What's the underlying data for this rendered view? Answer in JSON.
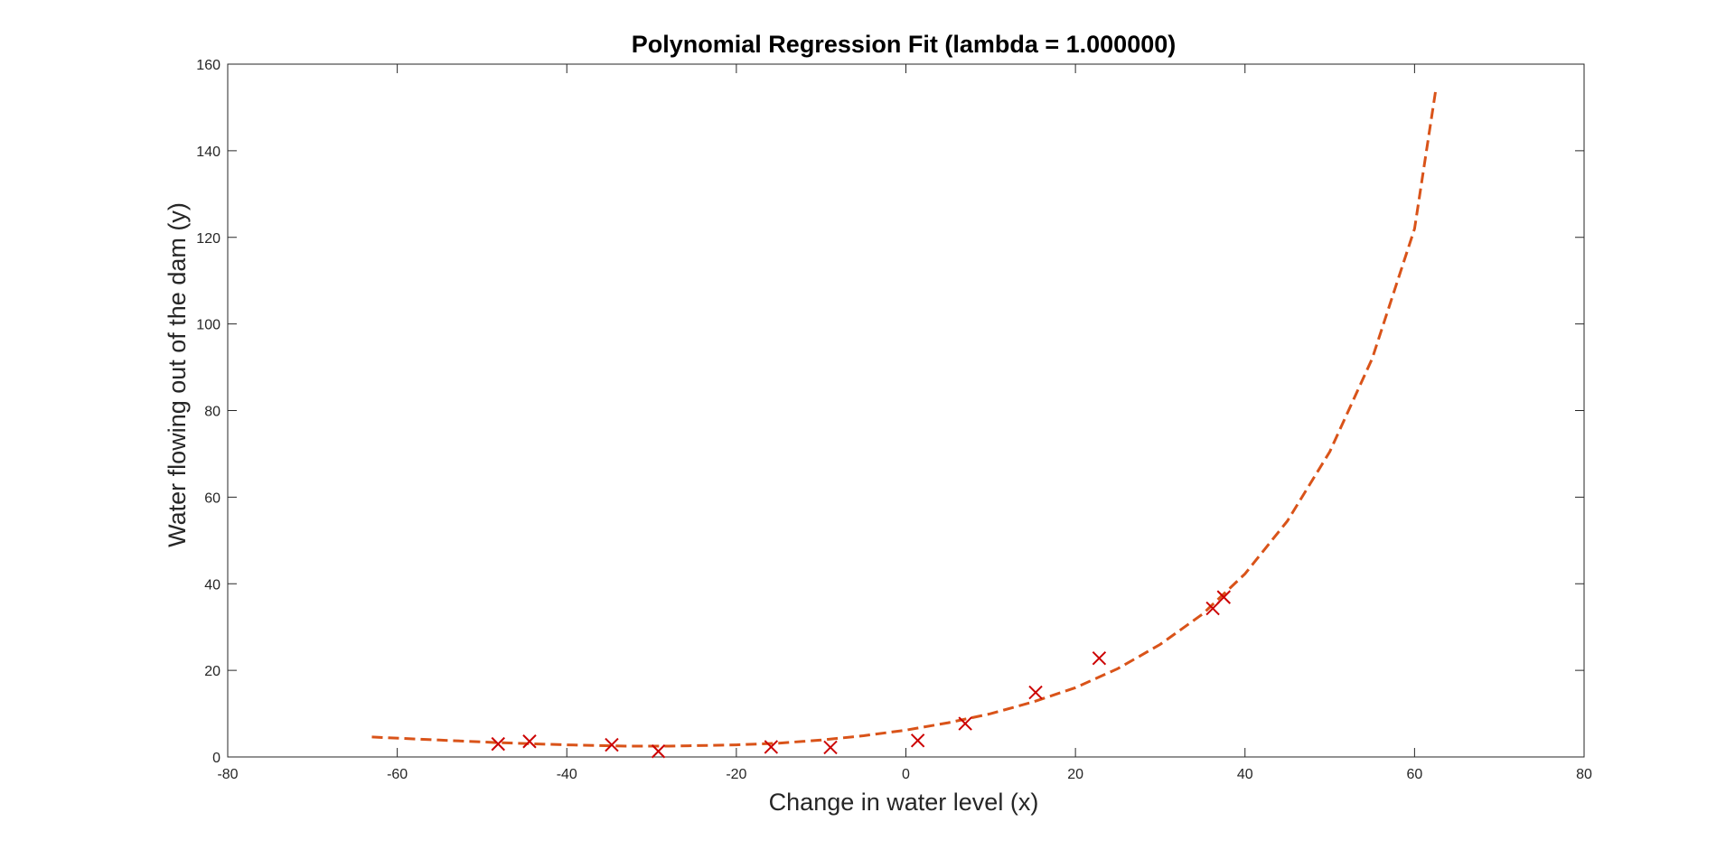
{
  "chart_data": {
    "type": "scatter",
    "title": "Polynomial Regression Fit (lambda = 1.000000)",
    "xlabel": "Change in water level (x)",
    "ylabel": "Water flowing out of the dam (y)",
    "xlim": [
      -80,
      80
    ],
    "ylim": [
      0,
      160
    ],
    "xticks": [
      -80,
      -60,
      -40,
      -20,
      0,
      20,
      40,
      60,
      80
    ],
    "yticks": [
      0,
      20,
      40,
      60,
      80,
      100,
      120,
      140,
      160
    ],
    "grid": false,
    "legend": "none",
    "series": [
      {
        "kind": "scatter",
        "marker": "x",
        "color": "#cc0000",
        "points": [
          {
            "x": -48.1,
            "y": 3.0
          },
          {
            "x": -44.4,
            "y": 3.6
          },
          {
            "x": -34.7,
            "y": 2.8
          },
          {
            "x": -29.2,
            "y": 1.3
          },
          {
            "x": -15.9,
            "y": 2.3
          },
          {
            "x": -8.9,
            "y": 2.2
          },
          {
            "x": 1.4,
            "y": 3.8
          },
          {
            "x": 7.0,
            "y": 7.7
          },
          {
            "x": 15.3,
            "y": 14.9
          },
          {
            "x": 22.8,
            "y": 22.8
          },
          {
            "x": 36.2,
            "y": 34.3
          },
          {
            "x": 37.5,
            "y": 36.9
          }
        ]
      },
      {
        "kind": "line",
        "style": "dashed",
        "color": "#d95319",
        "points": [
          {
            "x": -63,
            "y": 4.6
          },
          {
            "x": -55,
            "y": 3.9
          },
          {
            "x": -48,
            "y": 3.3
          },
          {
            "x": -40,
            "y": 2.8
          },
          {
            "x": -33,
            "y": 2.5
          },
          {
            "x": -28,
            "y": 2.5
          },
          {
            "x": -20,
            "y": 2.8
          },
          {
            "x": -15,
            "y": 3.2
          },
          {
            "x": -10,
            "y": 3.9
          },
          {
            "x": -5,
            "y": 4.9
          },
          {
            "x": 0,
            "y": 6.2
          },
          {
            "x": 5,
            "y": 7.9
          },
          {
            "x": 10,
            "y": 10.0
          },
          {
            "x": 15,
            "y": 12.7
          },
          {
            "x": 20,
            "y": 16.0
          },
          {
            "x": 25,
            "y": 20.4
          },
          {
            "x": 30,
            "y": 26.0
          },
          {
            "x": 35,
            "y": 33.0
          },
          {
            "x": 40,
            "y": 42.3
          },
          {
            "x": 45,
            "y": 54.5
          },
          {
            "x": 50,
            "y": 70.5
          },
          {
            "x": 55,
            "y": 92.0
          },
          {
            "x": 60,
            "y": 122.0
          },
          {
            "x": 62.5,
            "y": 154.0
          }
        ]
      }
    ]
  }
}
